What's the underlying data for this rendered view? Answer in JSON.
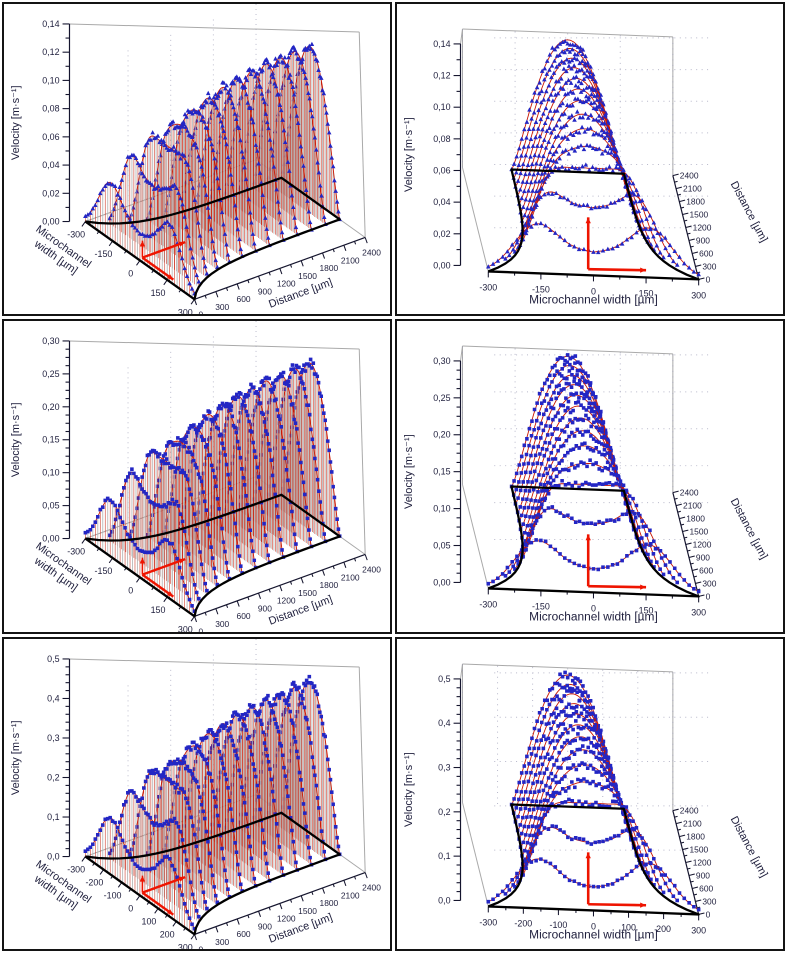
{
  "figure": {
    "description": "Six-panel scientific figure: 3D velocity profiles in a converging microchannel, measured points (blue markers) with fitted curves (red lines). Left column: perspective 3D view; right column: front 3D view. Rows differ by flow rate (max velocity 0.14 / 0.30 / 0.5 m*s-1).",
    "grid": "2 columns x 3 rows"
  },
  "chart_data": [
    {
      "id": "row1-left",
      "row": 1,
      "view": "perspective",
      "type": "3d-line-scatter",
      "marker": "triangle",
      "axes": {
        "velocity": {
          "title": "Velocity [m·s⁻¹]",
          "min": 0,
          "max": 0.14,
          "major_step": 0.02,
          "minor_step": 0.01,
          "tick_labels": [
            "0,00",
            "0,02",
            "0,04",
            "0,06",
            "0,08",
            "0,10",
            "0,12",
            "0,14"
          ]
        },
        "width": {
          "title": "Microchannel width [µm]",
          "title_lines": [
            "Microchannel",
            "width [µm]"
          ],
          "min": -300,
          "max": 300,
          "major_ticks": [
            -300,
            -150,
            0,
            150,
            300
          ],
          "minor_step": 75,
          "tick_labels": [
            "-300",
            "-150",
            "0",
            "150",
            "300"
          ]
        },
        "distance": {
          "title": "Distance [µm]",
          "min": 0,
          "max": 2400,
          "major_ticks": [
            0,
            300,
            600,
            900,
            1200,
            1500,
            1800,
            2100,
            2400
          ],
          "minor_step": 150,
          "tick_labels": [
            "0",
            "300",
            "600",
            "900",
            "1200",
            "1500",
            "1800",
            "2100",
            "2400"
          ]
        }
      },
      "series": {
        "name": "velocity profiles at successive downstream distances",
        "profile_distances_um": [
          0,
          200,
          400,
          600,
          800,
          1000,
          1200,
          1400,
          1600,
          1800,
          2000,
          2200,
          2400
        ],
        "peak_velocities_ms": [
          0.05,
          0.074,
          0.091,
          0.104,
          0.113,
          0.119,
          0.124,
          0.127,
          0.129,
          0.131,
          0.132,
          0.133,
          0.133
        ],
        "half_widths_um": [
          300,
          245,
          212,
          191,
          179,
          171,
          167,
          165,
          163,
          161,
          161,
          160,
          160
        ],
        "hump_factors": [
          1,
          0.565,
          0.319,
          0.18,
          0.102,
          0.057,
          0.032,
          0.018,
          0.01,
          0.006,
          0.003,
          0.002,
          0.001
        ]
      },
      "channel_outline_um": {
        "inlet_half_width": 300,
        "outlet_half_width": 160,
        "taper_constant": 400
      },
      "colors": {
        "marker": "#2326c4",
        "line": "#c81600",
        "drop_gray": "#b5b5b5",
        "outline": "#000000",
        "frame": "#a9a9a9",
        "grid": "#9a9ab4",
        "arrow": "#ee1400",
        "text": "#1e1e3c"
      },
      "annotation": {
        "type": "scale-arrows",
        "color": "#ee1400"
      }
    },
    {
      "id": "row1-right",
      "row": 1,
      "view": "front",
      "type": "3d-line-scatter",
      "marker": "triangle",
      "axes": {
        "velocity": {
          "title": "Velocity [m·s⁻¹]",
          "min": 0,
          "max": 0.14,
          "major_step": 0.02,
          "minor_step": 0.01,
          "tick_labels": [
            "0,00",
            "0,02",
            "0,04",
            "0,06",
            "0,08",
            "0,10",
            "0,12",
            "0,14"
          ]
        },
        "width": {
          "title": "Microchannel width [µm]",
          "min": -300,
          "max": 300,
          "major_ticks": [
            -300,
            -150,
            0,
            150,
            300
          ],
          "minor_step": 75,
          "tick_labels": [
            "-300",
            "-150",
            "0",
            "150",
            "300"
          ]
        },
        "distance": {
          "title": "Distance [µm]",
          "min": 0,
          "max": 2400,
          "major_ticks": [
            0,
            300,
            600,
            900,
            1200,
            1500,
            1800,
            2100,
            2400
          ],
          "minor_step": 150,
          "tick_labels": [
            "0",
            "300",
            "600",
            "900",
            "1200",
            "1500",
            "1800",
            "2100",
            "2400"
          ]
        }
      },
      "series": {
        "name": "velocity profiles at successive downstream distances",
        "profile_distances_um": [
          0,
          200,
          400,
          600,
          800,
          1000,
          1200,
          1400,
          1600,
          1800,
          2000,
          2200,
          2400
        ],
        "peak_velocities_ms": [
          0.05,
          0.074,
          0.091,
          0.104,
          0.113,
          0.119,
          0.124,
          0.127,
          0.129,
          0.131,
          0.132,
          0.133,
          0.133
        ],
        "half_widths_um": [
          300,
          245,
          212,
          191,
          179,
          171,
          167,
          165,
          163,
          161,
          161,
          160,
          160
        ],
        "hump_factors": [
          1,
          0.565,
          0.319,
          0.18,
          0.102,
          0.057,
          0.032,
          0.018,
          0.01,
          0.006,
          0.003,
          0.002,
          0.001
        ]
      },
      "channel_outline_um": {
        "inlet_half_width": 300,
        "outlet_half_width": 160,
        "taper_constant": 400
      },
      "colors": {
        "marker": "#2326c4",
        "line": "#c81600",
        "drop_gray": "#b5b5b5",
        "outline": "#000000",
        "frame": "#a9a9a9",
        "grid": "#9a9ab4",
        "arrow": "#ee1400",
        "text": "#1e1e3c"
      },
      "annotation": {
        "type": "scale-arrows",
        "color": "#ee1400"
      }
    },
    {
      "id": "row2-left",
      "row": 2,
      "view": "perspective",
      "type": "3d-line-scatter",
      "marker": "square",
      "axes": {
        "velocity": {
          "title": "Velocity [m·s⁻¹]",
          "min": 0,
          "max": 0.3,
          "major_step": 0.05,
          "minor_step": 0.0125,
          "tick_labels": [
            "0,00",
            "0,05",
            "0,10",
            "0,15",
            "0,20",
            "0,25",
            "0,30"
          ]
        },
        "width": {
          "title": "Microchannel width [µm]",
          "title_lines": [
            "Microchannel",
            "width [µm]"
          ],
          "min": -300,
          "max": 300,
          "major_ticks": [
            -300,
            -150,
            0,
            150,
            300
          ],
          "minor_step": 75,
          "tick_labels": [
            "-300",
            "-150",
            "0",
            "150",
            "300"
          ]
        },
        "distance": {
          "title": "Distance [µm]",
          "min": 0,
          "max": 2400,
          "major_ticks": [
            0,
            300,
            600,
            900,
            1200,
            1500,
            1800,
            2100,
            2400
          ],
          "minor_step": 150,
          "tick_labels": [
            "0",
            "300",
            "600",
            "900",
            "1200",
            "1500",
            "1800",
            "2100",
            "2400"
          ]
        }
      },
      "series": {
        "name": "velocity profiles at successive downstream distances",
        "profile_distances_um": [
          0,
          200,
          400,
          600,
          800,
          1000,
          1200,
          1400,
          1600,
          1800,
          2000,
          2200,
          2400
        ],
        "peak_velocities_ms": [
          0.107,
          0.159,
          0.196,
          0.223,
          0.242,
          0.256,
          0.265,
          0.272,
          0.277,
          0.281,
          0.283,
          0.285,
          0.286
        ],
        "half_widths_um": [
          300,
          245,
          212,
          191,
          179,
          171,
          167,
          165,
          163,
          161,
          161,
          160,
          160
        ],
        "hump_factors": [
          1,
          0.565,
          0.319,
          0.18,
          0.102,
          0.057,
          0.032,
          0.018,
          0.01,
          0.006,
          0.003,
          0.002,
          0.001
        ]
      },
      "channel_outline_um": {
        "inlet_half_width": 300,
        "outlet_half_width": 160,
        "taper_constant": 400
      },
      "colors": {
        "marker": "#2326c4",
        "line": "#c81600",
        "drop_gray": "#b5b5b5",
        "outline": "#000000",
        "frame": "#a9a9a9",
        "grid": "#9a9ab4",
        "arrow": "#ee1400",
        "text": "#1e1e3c"
      },
      "annotation": {
        "type": "scale-arrows",
        "color": "#ee1400"
      }
    },
    {
      "id": "row2-right",
      "row": 2,
      "view": "front",
      "type": "3d-line-scatter",
      "marker": "square",
      "axes": {
        "velocity": {
          "title": "Velocity [m·s⁻¹]",
          "min": 0,
          "max": 0.3,
          "major_step": 0.05,
          "minor_step": 0.0125,
          "tick_labels": [
            "0,00",
            "0,05",
            "0,10",
            "0,15",
            "0,20",
            "0,25",
            "0,30"
          ]
        },
        "width": {
          "title": "Microchannel width [µm]",
          "min": -300,
          "max": 300,
          "major_ticks": [
            -300,
            -150,
            0,
            150,
            300
          ],
          "minor_step": 75,
          "tick_labels": [
            "-300",
            "-150",
            "0",
            "150",
            "300"
          ]
        },
        "distance": {
          "title": "Distance [µm]",
          "min": 0,
          "max": 2400,
          "major_ticks": [
            0,
            300,
            600,
            900,
            1200,
            1500,
            1800,
            2100,
            2400
          ],
          "minor_step": 150,
          "tick_labels": [
            "0",
            "300",
            "600",
            "900",
            "1200",
            "1500",
            "1800",
            "2100",
            "2400"
          ]
        }
      },
      "series": {
        "name": "velocity profiles at successive downstream distances",
        "profile_distances_um": [
          0,
          200,
          400,
          600,
          800,
          1000,
          1200,
          1400,
          1600,
          1800,
          2000,
          2200,
          2400
        ],
        "peak_velocities_ms": [
          0.107,
          0.159,
          0.196,
          0.223,
          0.242,
          0.256,
          0.265,
          0.272,
          0.277,
          0.281,
          0.283,
          0.285,
          0.286
        ],
        "half_widths_um": [
          300,
          245,
          212,
          191,
          179,
          171,
          167,
          165,
          163,
          161,
          161,
          160,
          160
        ],
        "hump_factors": [
          1,
          0.565,
          0.319,
          0.18,
          0.102,
          0.057,
          0.032,
          0.018,
          0.01,
          0.006,
          0.003,
          0.002,
          0.001
        ]
      },
      "channel_outline_um": {
        "inlet_half_width": 300,
        "outlet_half_width": 160,
        "taper_constant": 400
      },
      "colors": {
        "marker": "#2326c4",
        "line": "#c81600",
        "drop_gray": "#b5b5b5",
        "outline": "#000000",
        "frame": "#a9a9a9",
        "grid": "#9a9ab4",
        "arrow": "#ee1400",
        "text": "#1e1e3c"
      },
      "annotation": {
        "type": "scale-arrows",
        "color": "#ee1400"
      }
    },
    {
      "id": "row3-left",
      "row": 3,
      "view": "perspective",
      "type": "3d-line-scatter",
      "marker": "square",
      "axes": {
        "velocity": {
          "title": "Velocity [m·s⁻¹]",
          "min": 0,
          "max": 0.5,
          "major_step": 0.1,
          "minor_step": 0.02,
          "tick_labels": [
            "0,0",
            "0,1",
            "0,2",
            "0,3",
            "0,4",
            "0,5"
          ]
        },
        "width": {
          "title": "Microchannel width [µm]",
          "title_lines": [
            "Microchannel",
            "width [µm]"
          ],
          "min": -300,
          "max": 300,
          "major_ticks": [
            -300,
            -200,
            -100,
            0,
            100,
            200,
            300
          ],
          "minor_step": 50,
          "tick_labels": [
            "-300",
            "-200",
            "-100",
            "0",
            "100",
            "200",
            "300"
          ]
        },
        "distance": {
          "title": "Distance [µm]",
          "min": 0,
          "max": 2400,
          "major_ticks": [
            0,
            300,
            600,
            900,
            1200,
            1500,
            1800,
            2100,
            2400
          ],
          "minor_step": 150,
          "tick_labels": [
            "0",
            "300",
            "600",
            "900",
            "1200",
            "1500",
            "1800",
            "2100",
            "2400"
          ]
        }
      },
      "series": {
        "name": "velocity profiles at successive downstream distances",
        "profile_distances_um": [
          0,
          200,
          400,
          600,
          800,
          1000,
          1200,
          1400,
          1600,
          1800,
          2000,
          2200,
          2400
        ],
        "peak_velocities_ms": [
          0.178,
          0.263,
          0.325,
          0.369,
          0.4,
          0.423,
          0.439,
          0.451,
          0.459,
          0.465,
          0.469,
          0.472,
          0.474
        ],
        "half_widths_um": [
          300,
          245,
          212,
          191,
          179,
          171,
          167,
          165,
          163,
          161,
          161,
          160,
          160
        ],
        "hump_factors": [
          1,
          0.565,
          0.319,
          0.18,
          0.102,
          0.057,
          0.032,
          0.018,
          0.01,
          0.006,
          0.003,
          0.002,
          0.001
        ]
      },
      "channel_outline_um": {
        "inlet_half_width": 300,
        "outlet_half_width": 160,
        "taper_constant": 400
      },
      "colors": {
        "marker": "#2326c4",
        "line": "#c81600",
        "drop_gray": "#b5b5b5",
        "outline": "#000000",
        "frame": "#a9a9a9",
        "grid": "#9a9ab4",
        "arrow": "#ee1400",
        "text": "#1e1e3c"
      },
      "annotation": {
        "type": "scale-arrows",
        "color": "#ee1400"
      }
    },
    {
      "id": "row3-right",
      "row": 3,
      "view": "front",
      "type": "3d-line-scatter",
      "marker": "square",
      "axes": {
        "velocity": {
          "title": "Velocity [m·s⁻¹]",
          "min": 0,
          "max": 0.5,
          "major_step": 0.1,
          "minor_step": 0.02,
          "tick_labels": [
            "0,0",
            "0,1",
            "0,2",
            "0,3",
            "0,4",
            "0,5"
          ]
        },
        "width": {
          "title": "Microchannel width [µm]",
          "min": -300,
          "max": 300,
          "major_ticks": [
            -300,
            -200,
            -100,
            0,
            100,
            200,
            300
          ],
          "minor_step": 50,
          "tick_labels": [
            "-300",
            "-200",
            "-100",
            "0",
            "100",
            "200",
            "300"
          ]
        },
        "distance": {
          "title": "Distance [µm]",
          "min": 0,
          "max": 2400,
          "major_ticks": [
            0,
            300,
            600,
            900,
            1200,
            1500,
            1800,
            2100,
            2400
          ],
          "minor_step": 150,
          "tick_labels": [
            "0",
            "300",
            "600",
            "900",
            "1200",
            "1500",
            "1800",
            "2100",
            "2400"
          ]
        }
      },
      "series": {
        "name": "velocity profiles at successive downstream distances",
        "profile_distances_um": [
          0,
          200,
          400,
          600,
          800,
          1000,
          1200,
          1400,
          1600,
          1800,
          2000,
          2200,
          2400
        ],
        "peak_velocities_ms": [
          0.178,
          0.263,
          0.325,
          0.369,
          0.4,
          0.423,
          0.439,
          0.451,
          0.459,
          0.465,
          0.469,
          0.472,
          0.474
        ],
        "half_widths_um": [
          300,
          245,
          212,
          191,
          179,
          171,
          167,
          165,
          163,
          161,
          161,
          160,
          160
        ],
        "hump_factors": [
          1,
          0.565,
          0.319,
          0.18,
          0.102,
          0.057,
          0.032,
          0.018,
          0.01,
          0.006,
          0.003,
          0.002,
          0.001
        ]
      },
      "channel_outline_um": {
        "inlet_half_width": 300,
        "outlet_half_width": 160,
        "taper_constant": 400
      },
      "colors": {
        "marker": "#2326c4",
        "line": "#c81600",
        "drop_gray": "#b5b5b5",
        "outline": "#000000",
        "frame": "#a9a9a9",
        "grid": "#9a9ab4",
        "arrow": "#ee1400",
        "text": "#1e1e3c"
      },
      "annotation": {
        "type": "scale-arrows",
        "color": "#ee1400"
      }
    }
  ]
}
